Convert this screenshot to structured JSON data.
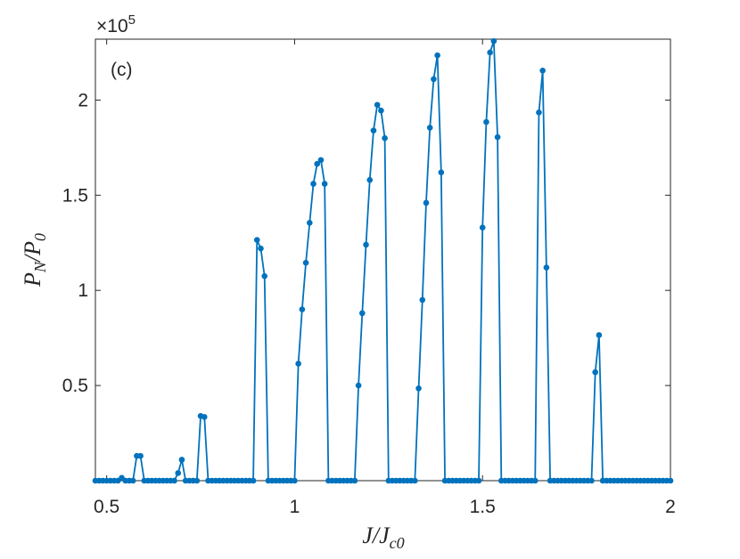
{
  "chart_data": {
    "type": "line",
    "annotation": "(c)",
    "exponent": [
      "×10",
      "5"
    ],
    "x_label": [
      "J/J",
      "c0"
    ],
    "y_label": [
      "P",
      "N",
      "/P",
      "0"
    ],
    "color": "#0072bd",
    "xlim": [
      0.47,
      2
    ],
    "xticks": [
      0.5,
      1,
      1.5,
      2
    ],
    "ylim": [
      0,
      2.32
    ],
    "yticks": [
      0.5,
      1,
      1.5,
      2
    ],
    "x": [
      0.47,
      0.48,
      0.49,
      0.5,
      0.51,
      0.52,
      0.53,
      0.54,
      0.55,
      0.56,
      0.57,
      0.58,
      0.59,
      0.6,
      0.61,
      0.62,
      0.63,
      0.64,
      0.65,
      0.66,
      0.67,
      0.68,
      0.69,
      0.7,
      0.71,
      0.72,
      0.73,
      0.74,
      0.75,
      0.76,
      0.77,
      0.78,
      0.79,
      0.8,
      0.81,
      0.82,
      0.83,
      0.84,
      0.85,
      0.86,
      0.87,
      0.88,
      0.89,
      0.9,
      0.91,
      0.92,
      0.93,
      0.94,
      0.95,
      0.96,
      0.97,
      0.98,
      0.99,
      1.0,
      1.01,
      1.02,
      1.03,
      1.04,
      1.05,
      1.06,
      1.07,
      1.08,
      1.09,
      1.1,
      1.11,
      1.12,
      1.13,
      1.14,
      1.15,
      1.16,
      1.17,
      1.18,
      1.19,
      1.2,
      1.21,
      1.22,
      1.23,
      1.24,
      1.25,
      1.26,
      1.27,
      1.28,
      1.29,
      1.3,
      1.31,
      1.32,
      1.33,
      1.34,
      1.35,
      1.36,
      1.37,
      1.38,
      1.39,
      1.4,
      1.41,
      1.42,
      1.43,
      1.44,
      1.45,
      1.46,
      1.47,
      1.48,
      1.49,
      1.5,
      1.51,
      1.52,
      1.53,
      1.54,
      1.55,
      1.56,
      1.57,
      1.58,
      1.59,
      1.6,
      1.61,
      1.62,
      1.63,
      1.64,
      1.65,
      1.66,
      1.67,
      1.68,
      1.69,
      1.7,
      1.71,
      1.72,
      1.73,
      1.74,
      1.75,
      1.76,
      1.77,
      1.78,
      1.79,
      1.8,
      1.81,
      1.82,
      1.83,
      1.84,
      1.85,
      1.86,
      1.87,
      1.88,
      1.89,
      1.9,
      1.91,
      1.92,
      1.93,
      1.94,
      1.95,
      1.96,
      1.97,
      1.98,
      1.99,
      2.0
    ],
    "values": [
      0,
      0,
      0,
      0,
      0,
      0,
      0,
      0.015,
      0,
      0,
      0,
      0.13,
      0.13,
      0,
      0,
      0,
      0,
      0,
      0,
      0,
      0,
      0,
      0.04,
      0.11,
      0,
      0,
      0,
      0,
      0.34,
      0.335,
      0,
      0,
      0,
      0,
      0,
      0,
      0,
      0,
      0,
      0,
      0,
      0,
      0,
      1.265,
      1.22,
      1.075,
      0,
      0,
      0,
      0,
      0,
      0,
      0,
      0,
      0.615,
      0.9,
      1.145,
      1.355,
      1.56,
      1.665,
      1.685,
      1.56,
      0,
      0,
      0,
      0,
      0,
      0,
      0,
      0,
      0.5,
      0.88,
      1.24,
      1.58,
      1.84,
      1.975,
      1.945,
      1.8,
      0,
      0,
      0,
      0,
      0,
      0,
      0,
      0,
      0.485,
      0.95,
      1.46,
      1.855,
      2.11,
      2.235,
      1.62,
      0,
      0,
      0,
      0,
      0,
      0,
      0,
      0,
      0,
      0,
      1.33,
      1.885,
      2.25,
      2.31,
      1.805,
      0,
      0,
      0,
      0,
      0,
      0,
      0,
      0,
      0,
      0,
      1.935,
      2.155,
      1.12,
      0,
      0,
      0,
      0,
      0,
      0,
      0,
      0,
      0,
      0,
      0,
      0,
      0.57,
      0.765,
      0,
      0,
      0,
      0,
      0,
      0,
      0,
      0,
      0,
      0,
      0,
      0,
      0,
      0,
      0,
      0,
      0,
      0,
      0
    ]
  }
}
